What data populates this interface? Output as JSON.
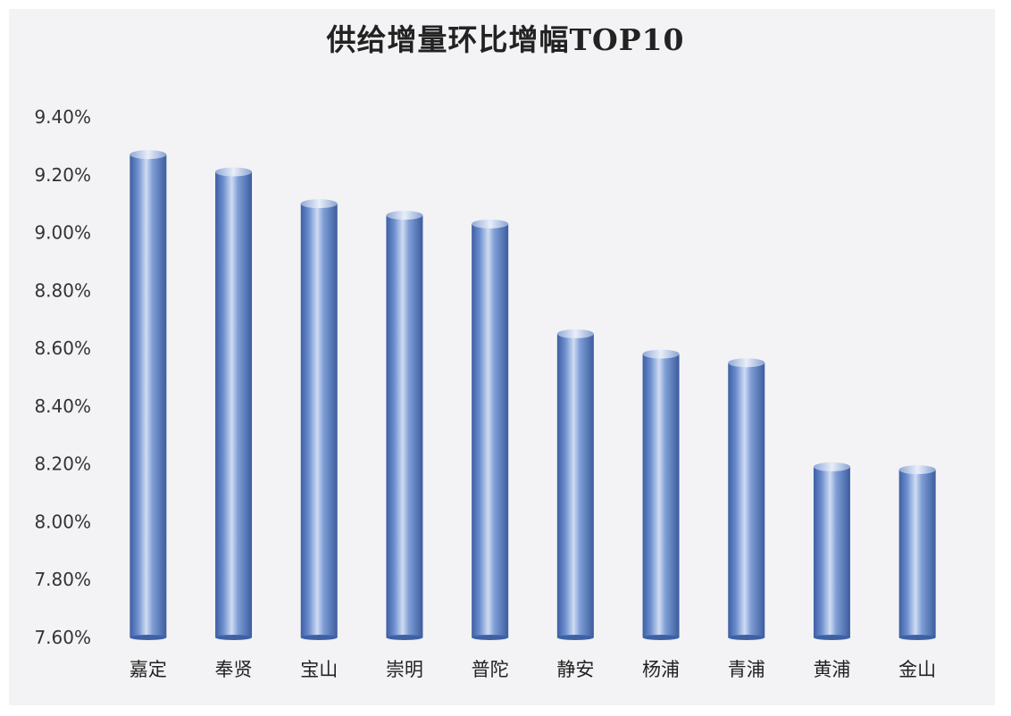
{
  "chart_data": {
    "type": "bar",
    "title": "供给增量环比增幅TOP10",
    "xlabel": "",
    "ylabel": "",
    "categories": [
      "嘉定",
      "奉贤",
      "宝山",
      "崇明",
      "普陀",
      "静安",
      "杨浦",
      "青浦",
      "黄浦",
      "金山"
    ],
    "values": [
      9.27,
      9.21,
      9.1,
      9.06,
      9.03,
      8.65,
      8.58,
      8.55,
      8.19,
      8.18
    ],
    "ylim": [
      7.6,
      9.4
    ],
    "yticks": [
      "7.60%",
      "7.80%",
      "8.00%",
      "8.20%",
      "8.40%",
      "8.60%",
      "8.80%",
      "9.00%",
      "9.20%",
      "9.40%"
    ],
    "ytick_values": [
      7.6,
      7.8,
      8.0,
      8.2,
      8.4,
      8.6,
      8.8,
      9.0,
      9.2,
      9.4
    ],
    "grid": false,
    "legend": "none",
    "bar_color": "#4f73b8"
  }
}
